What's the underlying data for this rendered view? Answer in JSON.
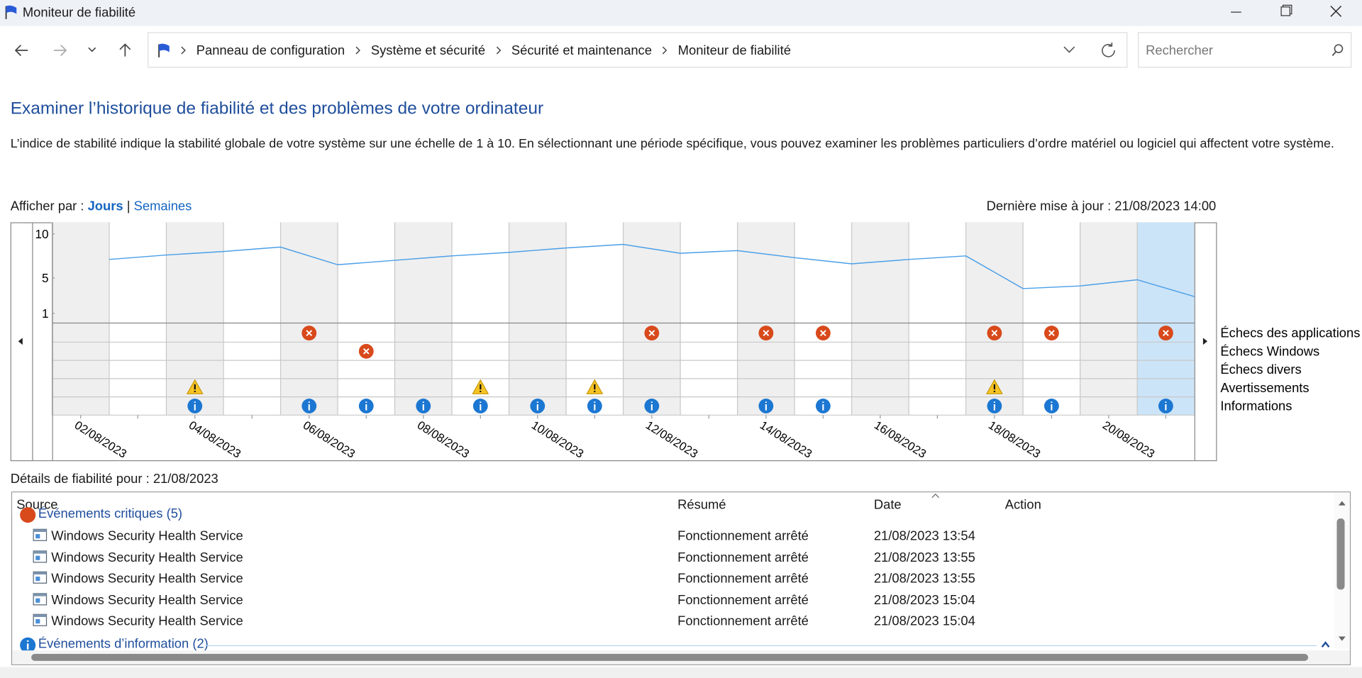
{
  "window": {
    "title": "Moniteur de fiabilité"
  },
  "nav": {
    "breadcrumb": [
      "Panneau de configuration",
      "Système et sécurité",
      "Sécurité et maintenance",
      "Moniteur de fiabilité"
    ],
    "search_placeholder": "Rechercher"
  },
  "heading": "Examiner l’historique de fiabilité et des problèmes de votre ordinateur",
  "description": "L’indice de stabilité indique la stabilité globale de votre système sur une échelle de 1 à 10. En sélectionnant une période spécifique, vous pouvez examiner les problèmes particuliers d’ordre matériel ou logiciel qui affectent votre système.",
  "view": {
    "label": "Afficher par :",
    "options": [
      "Jours",
      "Semaines"
    ],
    "separator": "|"
  },
  "last_update": "Dernière mise à jour : 21/08/2023 14:00",
  "chart_data": {
    "type": "line",
    "categories": [
      "02/08/2023",
      null,
      "04/08/2023",
      null,
      "06/08/2023",
      null,
      "08/08/2023",
      null,
      "10/08/2023",
      null,
      "12/08/2023",
      null,
      "14/08/2023",
      null,
      "16/08/2023",
      null,
      "18/08/2023",
      null,
      "20/08/2023",
      null
    ],
    "values": [
      7.1,
      7.6,
      8.0,
      8.5,
      6.5,
      7.0,
      7.5,
      7.9,
      8.4,
      8.8,
      7.8,
      8.1,
      7.3,
      6.6,
      7.1,
      7.5,
      3.8,
      4.1,
      4.8,
      2.9
    ],
    "color": "#4a9fe8",
    "ylim": [
      0,
      11.3
    ],
    "yticks": [
      1,
      5,
      10
    ],
    "event_rows": [
      {
        "label": "Échecs des applications",
        "values": [
          0,
          0,
          0,
          0,
          1,
          0,
          0,
          0,
          0,
          0,
          1,
          0,
          1,
          1,
          0,
          0,
          1,
          1,
          0,
          1
        ]
      },
      {
        "label": "Échecs Windows",
        "values": [
          0,
          0,
          0,
          0,
          0,
          1,
          0,
          0,
          0,
          0,
          0,
          0,
          0,
          0,
          0,
          0,
          0,
          0,
          0,
          0
        ]
      },
      {
        "label": "Échecs divers",
        "values": [
          0,
          0,
          0,
          0,
          0,
          0,
          0,
          0,
          0,
          0,
          0,
          0,
          0,
          0,
          0,
          0,
          0,
          0,
          0,
          0
        ]
      },
      {
        "label": "Avertissements",
        "values": [
          0,
          0,
          1,
          0,
          0,
          0,
          0,
          1,
          0,
          1,
          0,
          0,
          0,
          0,
          0,
          0,
          1,
          0,
          0,
          0
        ]
      },
      {
        "label": "Informations",
        "values": [
          0,
          0,
          1,
          0,
          1,
          1,
          1,
          1,
          1,
          1,
          1,
          0,
          1,
          1,
          0,
          0,
          1,
          1,
          0,
          1
        ]
      }
    ]
  },
  "details": {
    "label": "Détails de fiabilité pour : 21/08/2023",
    "columns": [
      "Source",
      "Résumé",
      "Date",
      "Action"
    ],
    "groups": [
      {
        "title": "Événements critiques (5)",
        "rows": [
          [
            "Windows Security Health Service",
            "Fonctionnement arrêté",
            "21/08/2023 13:54"
          ],
          [
            "Windows Security Health Service",
            "Fonctionnement arrêté",
            "21/08/2023 13:55"
          ],
          [
            "Windows Security Health Service",
            "Fonctionnement arrêté",
            "21/08/2023 13:55"
          ],
          [
            "Windows Security Health Service",
            "Fonctionnement arrêté",
            "21/08/2023 15:04"
          ],
          [
            "Windows Security Health Service",
            "Fonctionnement arrêté",
            "21/08/2023 15:04"
          ]
        ]
      },
      {
        "title": "Événements d’information (2)",
        "rows": []
      }
    ]
  }
}
